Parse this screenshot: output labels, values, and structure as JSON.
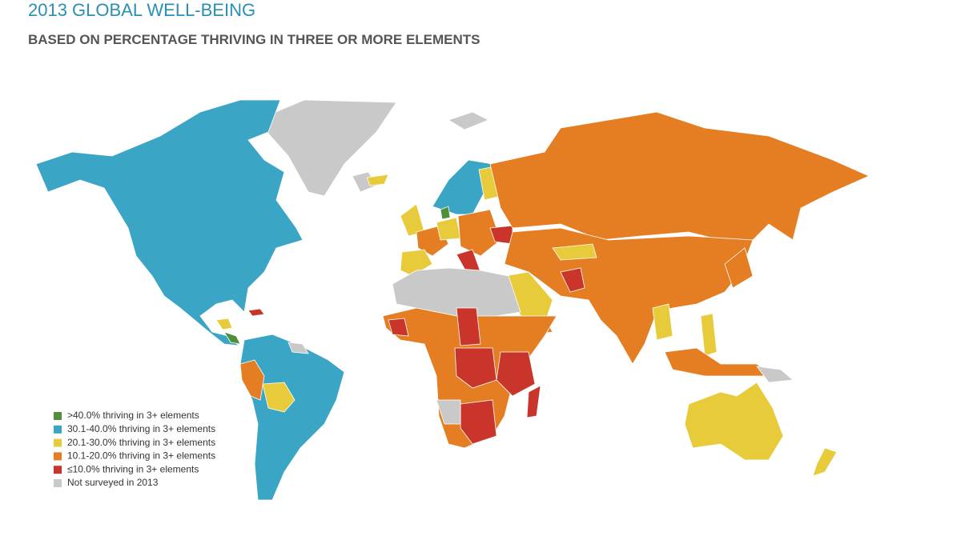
{
  "title": "2013 GLOBAL WELL-BEING",
  "subtitle": "BASED ON PERCENTAGE THRIVING IN THREE OR MORE ELEMENTS",
  "legend": {
    "items": [
      {
        "label": ">40.0% thriving in 3+ elements",
        "color": "#4e8f3a"
      },
      {
        "label": "30.1-40.0% thriving in 3+ elements",
        "color": "#3ba5c6"
      },
      {
        "label": "20.1-30.0% thriving in 3+ elements",
        "color": "#e8cb3a"
      },
      {
        "label": "10.1-20.0% thriving in 3+ elements",
        "color": "#e57d22"
      },
      {
        "label": "≤10.0% thriving in 3+ elements",
        "color": "#c9352a"
      },
      {
        "label": "Not surveyed in 2013",
        "color": "#c9c9c9"
      }
    ]
  }
}
